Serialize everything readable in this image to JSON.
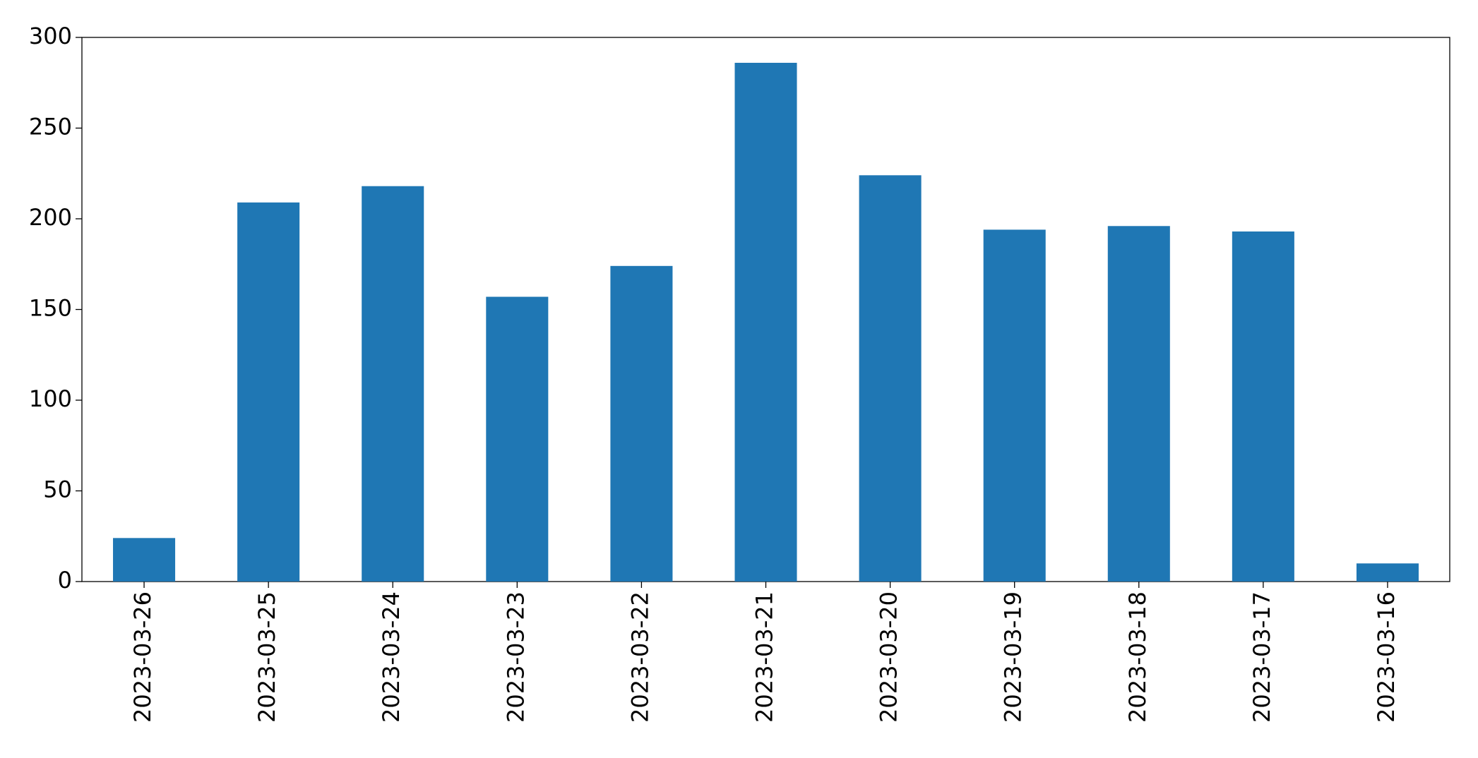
{
  "chart_data": {
    "type": "bar",
    "categories": [
      "2023-03-26",
      "2023-03-25",
      "2023-03-24",
      "2023-03-23",
      "2023-03-22",
      "2023-03-21",
      "2023-03-20",
      "2023-03-19",
      "2023-03-18",
      "2023-03-17",
      "2023-03-16"
    ],
    "values": [
      24,
      209,
      218,
      157,
      174,
      286,
      224,
      194,
      196,
      193,
      10
    ],
    "color": "#1f77b4",
    "ylim": [
      0,
      300
    ],
    "yticks": [
      0,
      50,
      100,
      150,
      200,
      250,
      300
    ],
    "grid": false
  }
}
